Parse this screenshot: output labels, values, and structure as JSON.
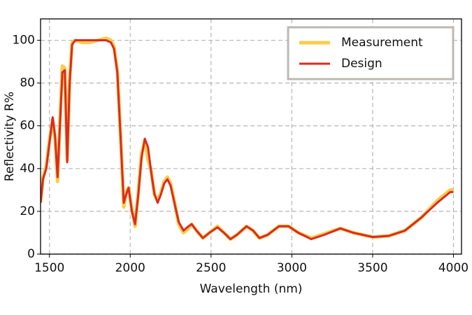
{
  "chart_data": {
    "type": "line",
    "xlabel": "Wavelength (nm)",
    "ylabel": "Reflectivity R%",
    "x": [
      1445,
      1460,
      1480,
      1500,
      1520,
      1535,
      1550,
      1565,
      1580,
      1595,
      1610,
      1625,
      1640,
      1660,
      1700,
      1750,
      1800,
      1850,
      1880,
      1900,
      1920,
      1940,
      1960,
      1975,
      1990,
      2010,
      2030,
      2050,
      2070,
      2090,
      2110,
      2130,
      2150,
      2170,
      2190,
      2210,
      2230,
      2250,
      2270,
      2300,
      2330,
      2360,
      2380,
      2410,
      2450,
      2490,
      2540,
      2580,
      2620,
      2660,
      2720,
      2760,
      2800,
      2850,
      2920,
      2980,
      3040,
      3120,
      3200,
      3300,
      3380,
      3500,
      3600,
      3700,
      3800,
      3900,
      3980,
      4000
    ],
    "series": [
      {
        "name": "Measurement",
        "color": "#f7cd4a",
        "width": 5,
        "values": [
          24,
          36,
          41,
          53,
          63,
          54,
          34,
          62,
          88,
          87,
          44,
          82,
          99,
          100,
          99,
          99,
          100,
          101,
          100,
          97,
          86,
          56,
          22,
          29,
          31,
          21,
          13,
          29,
          47,
          53,
          44,
          39,
          28,
          25,
          29,
          34,
          36,
          33,
          26,
          14,
          10,
          12,
          14,
          11,
          7.5,
          10,
          13,
          10,
          7,
          9,
          13,
          11,
          7.5,
          9,
          13,
          13,
          10,
          7.5,
          9.5,
          12,
          10,
          8,
          8.5,
          11,
          17,
          25,
          30,
          30
        ]
      },
      {
        "name": "Design",
        "color": "#dc2a25",
        "width": 3,
        "values": [
          24,
          35,
          40,
          52,
          64,
          55,
          36,
          60,
          85,
          86,
          43,
          80,
          98,
          100,
          100,
          100,
          100,
          100,
          99,
          96,
          85,
          55,
          24,
          28,
          31,
          20,
          14,
          28,
          45,
          54,
          50,
          38,
          28,
          24,
          28,
          33,
          35,
          32,
          25,
          15,
          11,
          13,
          14,
          11,
          7.5,
          10,
          12.5,
          10,
          7,
          9,
          13,
          11,
          7.5,
          9,
          13,
          13,
          10,
          7,
          9,
          12,
          10,
          8,
          8.5,
          11,
          17,
          24,
          29,
          29
        ]
      }
    ],
    "xlim": [
      1445,
      4050
    ],
    "ylim": [
      0,
      110
    ],
    "xticks": [
      1500,
      2000,
      2500,
      3000,
      3500,
      4000
    ],
    "yticks": [
      0,
      20,
      40,
      60,
      80,
      100
    ],
    "grid": true,
    "legend": "upper-right"
  }
}
